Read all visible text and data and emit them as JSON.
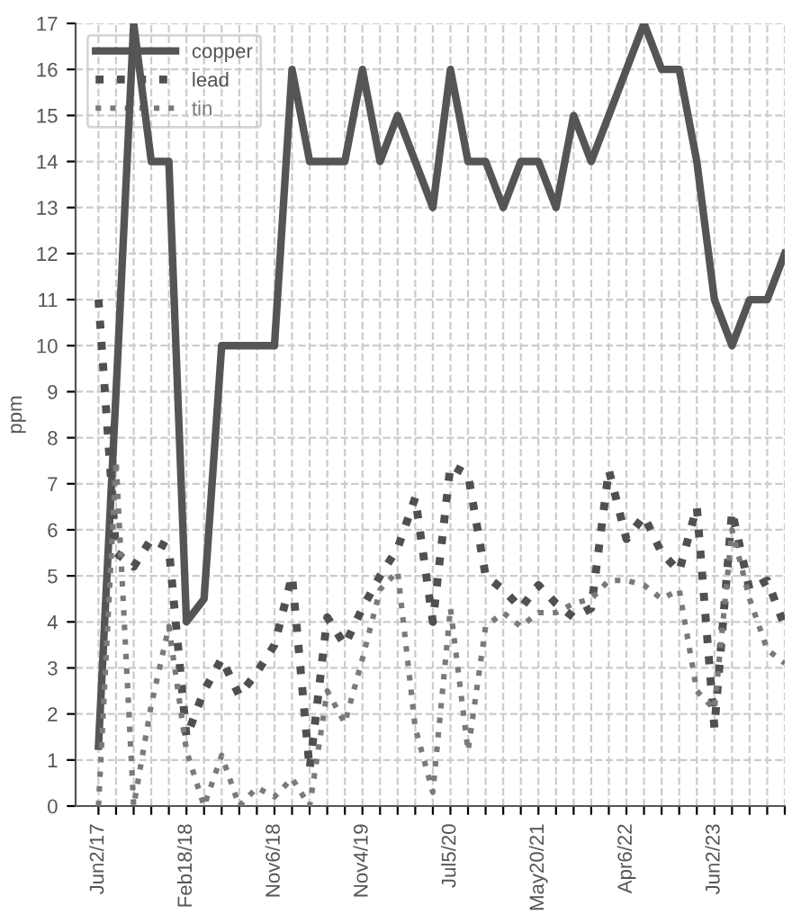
{
  "chart_data": {
    "type": "line",
    "ylabel": "ppm",
    "categories": [
      "Jun2/17",
      null,
      null,
      null,
      null,
      "Feb18/18",
      null,
      null,
      null,
      null,
      "Nov6/18",
      null,
      null,
      null,
      null,
      "Nov4/19",
      null,
      null,
      null,
      null,
      "Jul5/20",
      null,
      null,
      null,
      null,
      "May20/21",
      null,
      null,
      null,
      null,
      "Apr6/22",
      null,
      null,
      null,
      null,
      "Jun2/23",
      null,
      null,
      null,
      null
    ],
    "series": [
      {
        "name": "copper",
        "color": "#555555",
        "line_style": "solid",
        "values": [
          1.3,
          9,
          17,
          14,
          14,
          4,
          4.5,
          10,
          10,
          10,
          10,
          16,
          14,
          14,
          14,
          16,
          14,
          15,
          14,
          13,
          16,
          14,
          14,
          13,
          14,
          14,
          13,
          15,
          14,
          15,
          16,
          17,
          16,
          16,
          14,
          11,
          10,
          11,
          11,
          12
        ]
      },
      {
        "name": "lead",
        "color": "#505050",
        "line_style": "dotted",
        "values": [
          11,
          5.5,
          5.2,
          5.8,
          5.6,
          1.5,
          2.5,
          3.2,
          2.4,
          2.9,
          3.5,
          5,
          0.8,
          4.1,
          3.5,
          4.3,
          5,
          5.6,
          6.7,
          4,
          7.4,
          7.2,
          5,
          4.7,
          4.3,
          4.8,
          4.4,
          4.1,
          4.3,
          7.3,
          5.8,
          6.3,
          5.5,
          5.1,
          6.5,
          1.7,
          6.4,
          4.7,
          4.9,
          3.9
        ]
      },
      {
        "name": "tin",
        "color": "#7a7a7a",
        "line_style": "dotted",
        "values": [
          0,
          7.5,
          0,
          2.2,
          3.9,
          1.2,
          0,
          1.1,
          0,
          0.4,
          0.2,
          0.6,
          0,
          2.5,
          1.8,
          3.2,
          4.7,
          5.1,
          1.7,
          0.3,
          4.3,
          1.2,
          3.9,
          4.2,
          3.9,
          4.2,
          4.2,
          4.4,
          4.5,
          4.9,
          4.9,
          4.8,
          4.5,
          4.7,
          2.5,
          2.1,
          6.0,
          4.5,
          3.4,
          3.1
        ]
      }
    ],
    "ylim": [
      0,
      17
    ],
    "yticks": [
      0,
      1,
      2,
      3,
      4,
      5,
      6,
      7,
      8,
      9,
      10,
      11,
      12,
      13,
      14,
      15,
      16,
      17
    ],
    "grid": true,
    "legend": "top left"
  }
}
